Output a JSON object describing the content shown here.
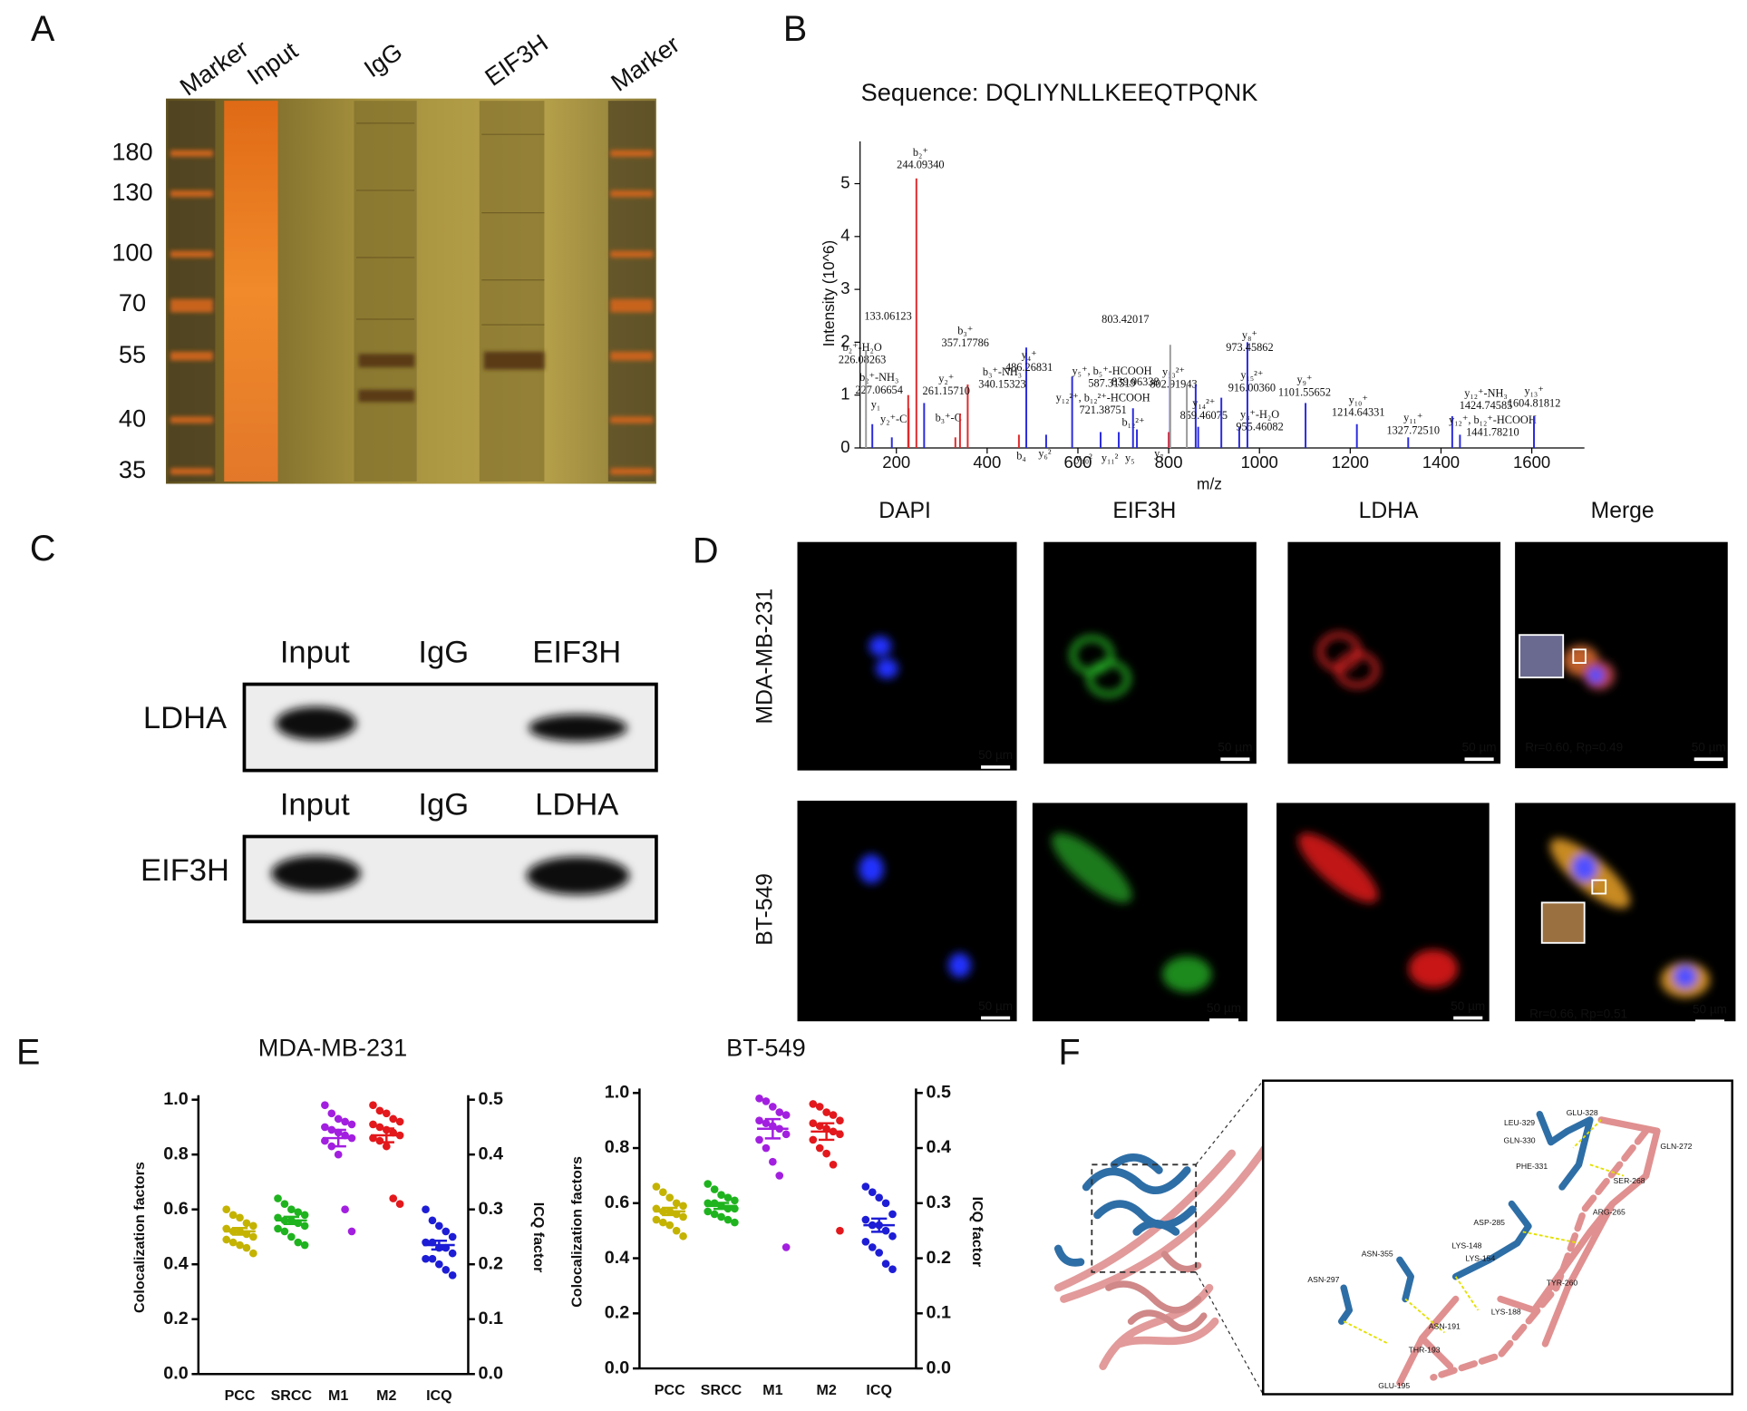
{
  "panels": {
    "A": {
      "label": "A",
      "lanes": [
        "Marker",
        "Input",
        "IgG",
        "EIF3H",
        "Marker"
      ],
      "mw_markers": [
        180,
        130,
        100,
        70,
        55,
        40,
        35
      ]
    },
    "B": {
      "label": "B",
      "sequence": "Sequence: DQLIYNLLKEEQTPQNK",
      "chart_data": {
        "type": "spectrum",
        "xlabel": "m/z",
        "ylabel": "Intensity (10^6)",
        "xlim": [
          120,
          1716
        ],
        "ylim": [
          0,
          5.8
        ],
        "xticks": [
          200,
          400,
          600,
          800,
          1000,
          1200,
          1400,
          1600
        ],
        "yticks": [
          0,
          1,
          2,
          3,
          4,
          5
        ],
        "series": [
          {
            "color": "#e0292b",
            "x": [
              226.08263,
              227.06654,
              244.0934,
              330,
              340.15323,
              357.17786,
              470,
              800
            ],
            "values": [
              1.0,
              0.75,
              5.1,
              0.2,
              0.65,
              1.2,
              0.25,
              0.3
            ],
            "ion_labels": [
              "b₂⁺-H₂O",
              "b₂⁺-NH₃",
              "b₂⁺",
              "b₃⁺-C",
              "b₃⁺-NH₃",
              "b₃⁺",
              "b₄",
              "b₁₂²⁺"
            ],
            "x_labels": [
              "226.08263",
              "227.06654",
              "244.09340",
              null,
              "340.15323",
              "357.17786",
              null,
              null
            ]
          },
          {
            "color": "#2a2ae0",
            "x": [
              147,
              190,
              261.1571,
              486.26831,
              530,
              587.31519,
              650,
              690,
              721.38751,
              730,
              802.91943,
              859.46075,
              865,
              916.0036,
              955.46082,
              973.45862,
              1101.55652,
              1214.64331,
              1327.7251,
              1424.74585,
              1441.7821,
              1604.81812
            ],
            "values": [
              0.45,
              0.2,
              0.85,
              1.9,
              0.25,
              1.35,
              0.3,
              0.3,
              0.75,
              0.35,
              1.45,
              1.2,
              0.4,
              0.95,
              0.4,
              2.0,
              0.85,
              0.45,
              0.2,
              0.6,
              0.25,
              0.6
            ],
            "ion_labels": [
              "y₁",
              "y₂⁺-C",
              "y₂⁺",
              "y₄⁺",
              "y₆²",
              "y₅⁺, b₅⁺-HCOOH",
              "y₁₀²",
              "y₁₁²",
              "y₁₂²⁺, b₁₂²⁺-HCOOH",
              "y₅",
              "y₁₃²⁺",
              "y₁₄²⁺",
              "y₇",
              "y₁₅²⁺",
              "y₈⁺-H₂O",
              "y₈⁺",
              "y₉⁺",
              "y₁₀⁺",
              "y₁₁⁺",
              "y₁₂⁺-NH₃",
              "y₁₂⁺, b₁₂⁺-HCOOH",
              "y₁₃⁺"
            ],
            "x_labels": [
              null,
              null,
              "261.15710",
              "486.26831",
              null,
              "587.31519",
              null,
              null,
              "721.38751",
              null,
              "802.91943",
              "859.46075",
              null,
              "916.00360",
              "955.46082",
              "973.45862",
              "1101.55652",
              "1214.64331",
              "1327.72510",
              "1424.74585",
              "1441.78210",
              "1604.81812"
            ]
          },
          {
            "color": "#9a9a9a",
            "x": [
              133.06123,
              803.42017,
              839.96338
            ],
            "values": [
              1.85,
              1.95,
              1.2
            ],
            "x_labels": [
              "133.06123",
              "803.42017",
              "839.96338"
            ]
          }
        ]
      }
    },
    "C": {
      "label": "C",
      "blots": [
        {
          "row_label": "LDHA",
          "lanes": [
            "Input",
            "IgG",
            "EIF3H"
          ]
        },
        {
          "row_label": "EIF3H",
          "lanes": [
            "Input",
            "IgG",
            "LDHA"
          ]
        }
      ]
    },
    "D": {
      "label": "D",
      "columns": [
        "DAPI",
        "EIF3H",
        "LDHA",
        "Merge"
      ],
      "rows": [
        "MDA-MB-231",
        "BT-549"
      ],
      "scale_bar": "50 µm",
      "coefficients": [
        "Rr=0.60, Rp=0.49",
        "Rr=0.66, Rp=0.51"
      ]
    },
    "E": {
      "label": "E",
      "chart_data": [
        {
          "type": "scatter",
          "title": "MDA-MB-231",
          "ylabel": "Colocalization factors",
          "y2label": "ICQ factor",
          "categories": [
            "PCC",
            "SRCC",
            "M1",
            "M2",
            "ICQ"
          ],
          "ylim": [
            0,
            1
          ],
          "yticks": [
            {
              "value": 0,
              "label": "0.0"
            },
            0.2,
            0.4,
            0.6,
            0.8,
            {
              "value": 1,
              "label": "1.0"
            }
          ],
          "y2lim": [
            0,
            0.5
          ],
          "y2ticks": [
            {
              "value": 0,
              "label": "0.0"
            },
            0.1,
            0.2,
            0.3,
            0.4,
            0.5
          ],
          "series": [
            {
              "color": "#c4b300",
              "values": [
                0.6,
                0.58,
                0.57,
                0.55,
                0.54,
                0.53,
                0.52,
                0.52,
                0.51,
                0.5,
                0.49,
                0.48,
                0.47,
                0.46,
                0.44
              ],
              "mean": 0.52,
              "sem": 0.012
            },
            {
              "color": "#1fb41f",
              "values": [
                0.64,
                0.62,
                0.6,
                0.59,
                0.58,
                0.57,
                0.56,
                0.56,
                0.55,
                0.54,
                0.53,
                0.52,
                0.5,
                0.48,
                0.47
              ],
              "mean": 0.56,
              "sem": 0.013
            },
            {
              "color": "#a21fe0",
              "values": [
                0.98,
                0.95,
                0.93,
                0.92,
                0.91,
                0.9,
                0.89,
                0.88,
                0.87,
                0.86,
                0.85,
                0.83,
                0.8,
                0.6,
                0.52
              ],
              "mean": 0.86,
              "sem": 0.03
            },
            {
              "color": "#e3181c",
              "values": [
                0.98,
                0.96,
                0.95,
                0.93,
                0.92,
                0.91,
                0.9,
                0.89,
                0.88,
                0.87,
                0.86,
                0.85,
                0.83,
                0.64,
                0.62
              ],
              "mean": 0.87,
              "sem": 0.025
            },
            {
              "color": "#1d1dd6",
              "axis": "y2",
              "values": [
                0.3,
                0.28,
                0.27,
                0.26,
                0.25,
                0.24,
                0.24,
                0.23,
                0.23,
                0.22,
                0.21,
                0.21,
                0.2,
                0.19,
                0.18
              ],
              "mean": 0.235,
              "sem": 0.008
            }
          ]
        },
        {
          "type": "scatter",
          "title": "BT-549",
          "ylabel": "Colocalization factors",
          "y2label": "ICQ factor",
          "categories": [
            "PCC",
            "SRCC",
            "M1",
            "M2",
            "ICQ"
          ],
          "ylim": [
            0,
            1
          ],
          "yticks": [
            {
              "value": 0,
              "label": "0.0"
            },
            0.2,
            0.4,
            0.6,
            0.8,
            {
              "value": 1,
              "label": "1.0"
            }
          ],
          "y2lim": [
            0,
            0.5
          ],
          "y2ticks": [
            {
              "value": 0,
              "label": "0.0"
            },
            0.1,
            0.2,
            0.3,
            0.4,
            0.5
          ],
          "series": [
            {
              "color": "#c4b300",
              "values": [
                0.66,
                0.64,
                0.62,
                0.6,
                0.59,
                0.58,
                0.57,
                0.57,
                0.56,
                0.55,
                0.54,
                0.53,
                0.52,
                0.5,
                0.48
              ],
              "mean": 0.57,
              "sem": 0.013
            },
            {
              "color": "#1fb41f",
              "values": [
                0.67,
                0.65,
                0.63,
                0.62,
                0.61,
                0.6,
                0.6,
                0.59,
                0.58,
                0.58,
                0.57,
                0.56,
                0.55,
                0.54,
                0.53
              ],
              "mean": 0.59,
              "sem": 0.011
            },
            {
              "color": "#a21fe0",
              "values": [
                0.98,
                0.97,
                0.95,
                0.93,
                0.92,
                0.9,
                0.89,
                0.88,
                0.87,
                0.85,
                0.83,
                0.8,
                0.75,
                0.7,
                0.44
              ],
              "mean": 0.87,
              "sem": 0.035
            },
            {
              "color": "#e3181c",
              "values": [
                0.96,
                0.95,
                0.93,
                0.92,
                0.9,
                0.89,
                0.88,
                0.87,
                0.86,
                0.85,
                0.83,
                0.8,
                0.78,
                0.74,
                0.5
              ],
              "mean": 0.86,
              "sem": 0.03
            },
            {
              "color": "#1d1dd6",
              "axis": "y2",
              "values": [
                0.33,
                0.32,
                0.31,
                0.3,
                0.28,
                0.27,
                0.26,
                0.26,
                0.25,
                0.24,
                0.23,
                0.22,
                0.21,
                0.19,
                0.18
              ],
              "mean": 0.26,
              "sem": 0.012
            }
          ]
        }
      ]
    },
    "F": {
      "label": "F",
      "residues": [
        "GLU-328",
        "LEU-329",
        "GLN-330",
        "GLN-272",
        "PHE-331",
        "SER-268",
        "ARG-265",
        "ASP-285",
        "LYS-148",
        "LYS-154",
        "ASN-355",
        "ASN-297",
        "TYR-260",
        "LYS-188",
        "ASN-191",
        "THR-193",
        "GLU-195"
      ]
    }
  }
}
